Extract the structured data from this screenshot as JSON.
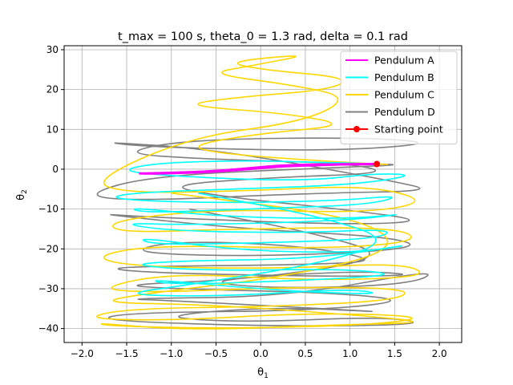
{
  "chart_data": {
    "type": "line",
    "title": "t_max = 100 s, theta_0 = 1.3 rad, delta = 0.1 rad",
    "xlabel": "θ1",
    "ylabel": "θ2",
    "xlim": [
      -2.2,
      2.25
    ],
    "ylim": [
      -43.5,
      31
    ],
    "xticks": [
      -2.0,
      -1.5,
      -1.0,
      -0.5,
      0.0,
      0.5,
      1.0,
      1.5,
      2.0
    ],
    "xtick_labels": [
      "−2.0",
      "−1.5",
      "−1.0",
      "−0.5",
      "0.0",
      "0.5",
      "1.0",
      "1.5",
      "2.0"
    ],
    "yticks": [
      -40,
      -30,
      -20,
      -10,
      0,
      10,
      20,
      30
    ],
    "ytick_labels": [
      "−40",
      "−30",
      "−20",
      "−10",
      "0",
      "10",
      "20",
      "30"
    ],
    "grid": true,
    "legend_position": "top-right",
    "series": [
      {
        "name": "Pendulum D",
        "color": "#808080",
        "x": [
          1.3,
          1.65,
          1.0,
          -1.2,
          -2.0,
          -1.4,
          0.6,
          1.95,
          1.5,
          -0.5,
          -1.85,
          -1.2,
          0.8,
          2.0,
          1.2,
          -0.8,
          -1.6,
          -0.6,
          1.0,
          1.45,
          0.2,
          -1.1,
          -0.4,
          0.9,
          1.9,
          1.0,
          -1.3,
          -1.9,
          -0.2,
          1.5,
          1.8,
          0.0,
          -1.5,
          -1.0,
          0.4,
          1.4,
          0.5,
          -1.8,
          -1.3,
          0.9,
          1.8,
          1.0,
          -0.7,
          0.1,
          1.7,
          2.0,
          0.3,
          -1.6,
          -1.0,
          0.7,
          1.5,
          0.1,
          -1.2,
          -0.2,
          1.4,
          1.9,
          0.2,
          -1.85,
          -1.5,
          0.6,
          1.7,
          0.8,
          -1.0,
          -1.6,
          0.0,
          1.5,
          0.6,
          -0.8
        ],
        "y": [
          1.3,
          1.2,
          0.5,
          -1.5,
          -6.5,
          -8.0,
          -6.0,
          -5.5,
          -3.0,
          5.0,
          7.0,
          5.5,
          4.5,
          6.5,
          8.0,
          7.5,
          4.0,
          2.5,
          1.5,
          -1.0,
          -2.0,
          -4.0,
          -7.0,
          -10.0,
          -13.0,
          -14.0,
          -12.0,
          -11.0,
          -15.0,
          -17.0,
          -20.0,
          -22.0,
          -21.0,
          -18.0,
          -19.0,
          -23.0,
          -24.0,
          -24.5,
          -26.0,
          -27.0,
          -26.5,
          -25.5,
          -28.0,
          -30.0,
          -29.0,
          -25.0,
          -32.0,
          -32.5,
          -33.0,
          -35.0,
          -36.0,
          -34.5,
          -37.0,
          -38.5,
          -37.0,
          -39.0,
          -39.5,
          -38.0,
          -36.0,
          -35.5,
          -33.0,
          -31.0,
          -30.0,
          -29.0,
          -27.5,
          -22.0,
          -16.0,
          -10.0
        ]
      },
      {
        "name": "Pendulum C",
        "color": "#ffd700",
        "x": [
          1.3,
          1.6,
          0.7,
          -0.5,
          -0.8,
          0.0,
          1.0,
          0.3,
          -0.9,
          -0.3,
          0.8,
          1.0,
          0.0,
          -0.4,
          0.6,
          -0.1,
          -0.6,
          0.4,
          1.0,
          0.5,
          -0.8,
          -1.9,
          -1.5,
          -0.2,
          1.2,
          1.9,
          1.2,
          -0.5,
          -1.7,
          -1.6,
          -0.3,
          1.5,
          1.8,
          0.8,
          -1.2,
          -1.9,
          -1.4,
          0.2,
          1.6,
          1.9,
          0.6,
          -1.0,
          -1.85,
          -1.2,
          0.4,
          1.7,
          1.5,
          0.1,
          -1.5,
          -2.0,
          -1.0,
          0.6,
          1.9,
          1.3,
          -0.2,
          -1.6,
          -1.9,
          -0.8,
          0.9,
          1.95,
          1.0,
          -0.6,
          -1.8,
          -1.4,
          0.3,
          1.6,
          1.1,
          -1.0
        ],
        "y": [
          1.3,
          1.0,
          2.0,
          4.0,
          6.0,
          9.0,
          11.0,
          14.0,
          16.0,
          18.0,
          20.0,
          23.0,
          25.0,
          27.0,
          29.0,
          26.0,
          24.0,
          21.0,
          18.0,
          12.0,
          8.0,
          -3.0,
          -6.0,
          -5.5,
          -4.0,
          -8.0,
          -11.0,
          -10.0,
          -13.0,
          -16.0,
          -15.0,
          -14.5,
          -18.0,
          -20.0,
          -19.0,
          -22.0,
          -24.5,
          -25.0,
          -23.5,
          -27.0,
          -28.0,
          -26.0,
          -30.0,
          -31.0,
          -29.5,
          -30.0,
          -33.0,
          -34.5,
          -35.0,
          -37.5,
          -38.0,
          -36.0,
          -37.0,
          -39.0,
          -40.0,
          -39.5,
          -38.5,
          -40.5,
          -39.0,
          -38.5,
          -36.5,
          -34.0,
          -33.5,
          -31.5,
          -27.0,
          -20.0,
          -12.0,
          -6.0
        ]
      },
      {
        "name": "Pendulum B",
        "color": "#00ffff",
        "x": [
          1.3,
          1.1,
          0.6,
          -0.3,
          -1.2,
          -1.6,
          -0.8,
          0.5,
          1.3,
          1.75,
          1.0,
          -0.4,
          -1.5,
          -1.7,
          -0.6,
          0.8,
          1.6,
          1.2,
          -0.2,
          -1.3,
          -1.5,
          -0.4,
          1.0,
          1.7,
          0.9,
          -0.8,
          -1.6,
          -1.0,
          0.4,
          1.5,
          1.3,
          0.0,
          -1.2,
          -1.4,
          -0.2,
          1.1,
          1.8,
          0.6,
          -0.9,
          -1.5,
          -0.6,
          0.9,
          1.6,
          0.4,
          -1.0,
          -1.3,
          0.2,
          1.4,
          1.0,
          -0.5,
          -1.6,
          -0.8,
          0.6,
          1.5,
          0.7,
          -0.7
        ],
        "y": [
          1.3,
          1.5,
          1.8,
          2.2,
          1.5,
          -0.5,
          -2.0,
          -3.0,
          -1.0,
          -1.5,
          -4.0,
          -5.0,
          -6.0,
          -7.5,
          -8.5,
          -8.0,
          -6.5,
          -9.0,
          -10.0,
          -11.0,
          -9.5,
          -12.0,
          -12.5,
          -11.0,
          -13.0,
          -14.0,
          -13.5,
          -15.5,
          -16.0,
          -15.0,
          -17.5,
          -18.5,
          -19.0,
          -17.0,
          -20.5,
          -21.0,
          -18.5,
          -22.5,
          -23.0,
          -24.0,
          -25.5,
          -25.0,
          -26.5,
          -28.0,
          -29.0,
          -27.5,
          -30.5,
          -31.5,
          -30.0,
          -32.0,
          -31.5,
          -29.0,
          -24.0,
          -18.0,
          -12.0,
          -6.0
        ]
      },
      {
        "name": "Pendulum A",
        "color": "#ff00ff",
        "x": [
          1.3,
          1.1,
          0.8,
          0.5,
          0.2,
          -0.1,
          -0.4,
          -0.7,
          -1.0,
          -1.2,
          -1.4,
          -1.2,
          -0.9,
          -0.6,
          -0.3,
          0.0,
          0.3,
          0.6,
          0.9,
          1.2,
          1.35,
          1.1,
          0.8,
          0.5,
          0.2,
          -0.1,
          -0.4,
          -0.7,
          -1.0,
          -1.3
        ],
        "y": [
          1.3,
          1.3,
          1.2,
          1.1,
          0.9,
          0.3,
          -0.3,
          -0.7,
          -0.9,
          -1.0,
          -1.1,
          -1.0,
          -0.9,
          -0.7,
          -0.2,
          0.4,
          0.8,
          1.0,
          1.2,
          1.3,
          1.3,
          1.3,
          1.2,
          1.0,
          0.7,
          0.1,
          -0.4,
          -0.8,
          -1.0,
          -1.1
        ]
      }
    ],
    "starting_point": {
      "name": "Starting point",
      "color": "#ff0000",
      "x": 1.3,
      "y": 1.3
    }
  }
}
